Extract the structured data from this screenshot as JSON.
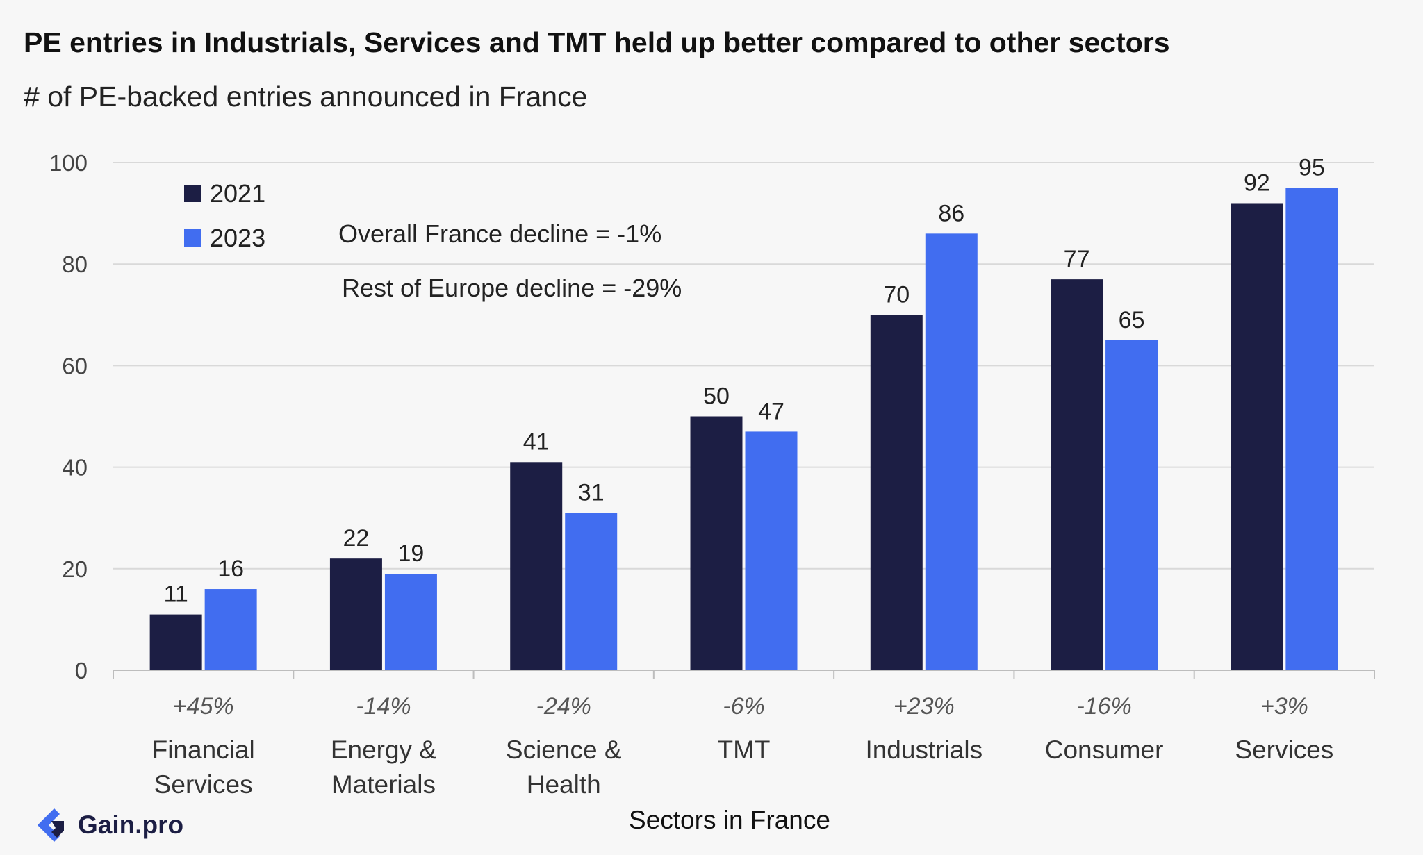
{
  "header": {
    "title": "PE entries in Industrials, Services and TMT held up better compared to other sectors",
    "subtitle": "# of PE-backed entries announced in France"
  },
  "brand": {
    "name": "Gain.pro",
    "icon": "gain-pro-logo-icon"
  },
  "colors": {
    "2021": "#1c1e44",
    "2023": "#416df0",
    "grid": "#d9d9d9",
    "axis": "#bdbdbd"
  },
  "chart_data": {
    "type": "bar",
    "title": "PE entries in Industrials, Services and TMT held up better compared to other sectors",
    "subtitle": "# of PE-backed entries announced in France",
    "xlabel": "Sectors in France",
    "ylabel": "",
    "ylim": [
      0,
      100
    ],
    "yticks": [
      0,
      20,
      40,
      60,
      80,
      100
    ],
    "grid": true,
    "legend_position": "top-left",
    "categories": [
      "Financial Services",
      "Energy & Materials",
      "Science & Health",
      "TMT",
      "Industrials",
      "Consumer",
      "Services"
    ],
    "category_lines": [
      [
        "Financial",
        "Services"
      ],
      [
        "Energy &",
        "Materials"
      ],
      [
        "Science &",
        "Health"
      ],
      [
        "TMT"
      ],
      [
        "Industrials"
      ],
      [
        "Consumer"
      ],
      [
        "Services"
      ]
    ],
    "change_labels": [
      "+45%",
      "-14%",
      "-24%",
      "-6%",
      "+23%",
      "-16%",
      "+3%"
    ],
    "series": [
      {
        "name": "2021",
        "values": [
          11,
          22,
          41,
          50,
          70,
          77,
          92
        ]
      },
      {
        "name": "2023",
        "values": [
          16,
          19,
          31,
          47,
          86,
          65,
          95
        ]
      }
    ],
    "annotations": [
      "Overall France decline = -1%",
      "Rest of Europe decline = -29%"
    ]
  }
}
